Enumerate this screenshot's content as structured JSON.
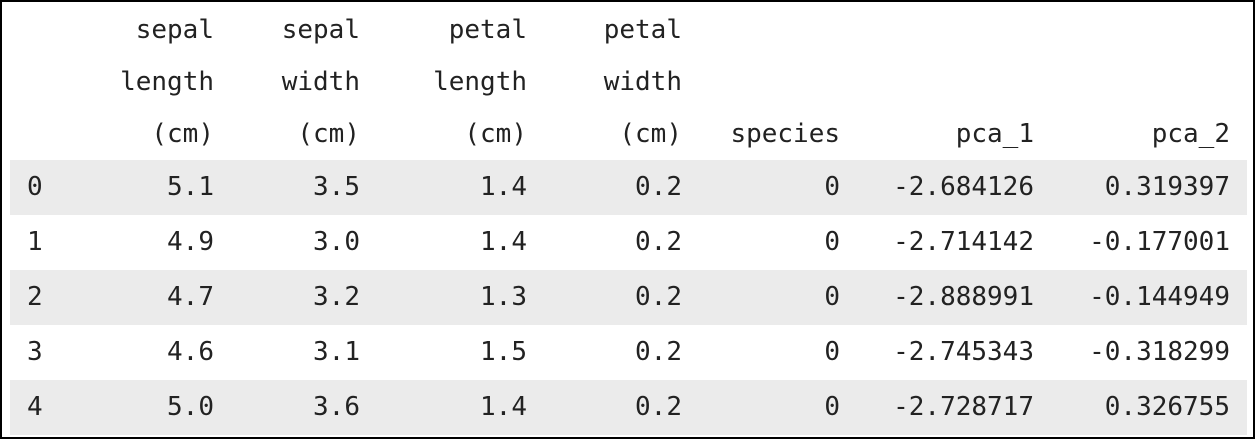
{
  "table": {
    "columns": [
      "",
      "sepal length (cm)",
      "sepal width (cm)",
      "petal length (cm)",
      "petal width (cm)",
      "species",
      "pca_1",
      "pca_2"
    ],
    "rows": [
      [
        "0",
        "5.1",
        "3.5",
        "1.4",
        "0.2",
        "0",
        "-2.684126",
        "0.319397"
      ],
      [
        "1",
        "4.9",
        "3.0",
        "1.4",
        "0.2",
        "0",
        "-2.714142",
        "-0.177001"
      ],
      [
        "2",
        "4.7",
        "3.2",
        "1.3",
        "0.2",
        "0",
        "-2.888991",
        "-0.144949"
      ],
      [
        "3",
        "4.6",
        "3.1",
        "1.5",
        "0.2",
        "0",
        "-2.745343",
        "-0.318299"
      ],
      [
        "4",
        "5.0",
        "3.6",
        "1.4",
        "0.2",
        "0",
        "-2.728717",
        "0.326755"
      ]
    ]
  }
}
